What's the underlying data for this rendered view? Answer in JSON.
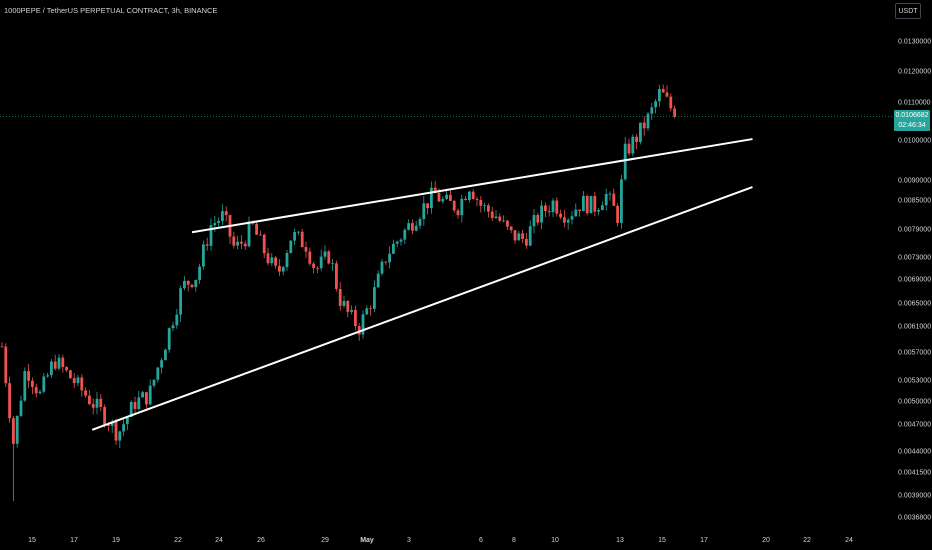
{
  "header": {
    "title": "1000PEPE / TetherUS PERPETUAL CONTRACT, 3h, BINANCE",
    "currency": "USDT"
  },
  "last_price": {
    "value": "0.0106682",
    "countdown": "02:46:34"
  },
  "colors": {
    "up": "#26a69a",
    "down": "#ef5350",
    "background": "#000000",
    "trendline": "#ffffff",
    "price_line": "#26a69a"
  },
  "chart_data": {
    "type": "candlestick",
    "symbol": "1000PEPE / TetherUS PERPETUAL CONTRACT",
    "interval": "3h",
    "exchange": "BINANCE",
    "y_scale": "log",
    "ylim": [
      0.0035,
      0.014
    ],
    "y_ticks": [
      "0.0130000",
      "0.0120000",
      "0.0110000",
      "0.0100000",
      "0.0090000",
      "0.0085000",
      "0.0079000",
      "0.0073000",
      "0.0069000",
      "0.0065000",
      "0.0061000",
      "0.0057000",
      "0.0053000",
      "0.0050000",
      "0.0047000",
      "0.0044000",
      "0.0041500",
      "0.0039000",
      "0.0036800"
    ],
    "x_ticks": [
      "15",
      "17",
      "19",
      "22",
      "24",
      "26",
      "29",
      "May",
      "3",
      "6",
      "8",
      "10",
      "13",
      "15",
      "17",
      "20",
      "22",
      "24"
    ],
    "last_price": 0.0106682,
    "price_path": [
      [
        0,
        0.0058
      ],
      [
        1.2,
        0.0045
      ],
      [
        2.5,
        0.0055
      ],
      [
        4,
        0.0051
      ],
      [
        5.5,
        0.0056
      ],
      [
        7.5,
        0.0053
      ],
      [
        9.5,
        0.005
      ],
      [
        11,
        0.0048
      ],
      [
        12.2,
        0.0046
      ],
      [
        14,
        0.005
      ],
      [
        15.5,
        0.0051
      ],
      [
        17.5,
        0.006
      ],
      [
        19,
        0.0068
      ],
      [
        20.5,
        0.007
      ],
      [
        22,
        0.008
      ],
      [
        23.3,
        0.0082
      ],
      [
        24.5,
        0.0075
      ],
      [
        25.5,
        0.0077
      ],
      [
        26.3,
        0.008
      ],
      [
        27.5,
        0.0075
      ],
      [
        29,
        0.007
      ],
      [
        30.5,
        0.0078
      ],
      [
        32,
        0.0076
      ],
      [
        33,
        0.0071
      ],
      [
        34.5,
        0.0074
      ],
      [
        35.5,
        0.0066
      ],
      [
        36.5,
        0.0063
      ],
      [
        37.6,
        0.0061
      ],
      [
        39,
        0.0066
      ],
      [
        40.5,
        0.0074
      ],
      [
        42.5,
        0.0079
      ],
      [
        44,
        0.0083
      ],
      [
        45.5,
        0.0087
      ],
      [
        46.5,
        0.0085
      ],
      [
        48,
        0.0084
      ],
      [
        49.2,
        0.0089
      ],
      [
        50.5,
        0.0084
      ],
      [
        52,
        0.0082
      ],
      [
        53.5,
        0.0078
      ],
      [
        55,
        0.0077
      ],
      [
        56.5,
        0.0082
      ],
      [
        58,
        0.0085
      ],
      [
        59.5,
        0.0082
      ],
      [
        61,
        0.0085
      ],
      [
        62.5,
        0.0084
      ],
      [
        63.5,
        0.0087
      ],
      [
        64.8,
        0.0082
      ],
      [
        65.6,
        0.0097
      ],
      [
        66.8,
        0.0101
      ],
      [
        68.2,
        0.0107
      ],
      [
        69.3,
        0.0114
      ],
      [
        70.2,
        0.011
      ],
      [
        71,
        0.0106682
      ]
    ],
    "trendlines": [
      {
        "name": "upper",
        "from": [
          20,
          0.00785
        ],
        "to": [
          79,
          0.01005
        ]
      },
      {
        "name": "lower",
        "from": [
          9.5,
          0.00465
        ],
        "to": [
          79,
          0.00885
        ]
      }
    ]
  }
}
